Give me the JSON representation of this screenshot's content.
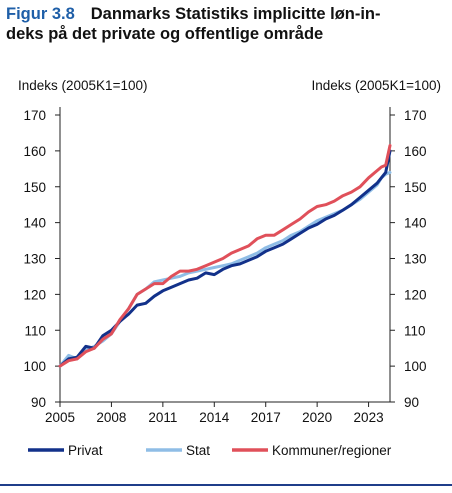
{
  "figure": {
    "number": "Figur 3.8",
    "title_line1": "Danmarks Statistiks implicitte løn-in-",
    "title_line2": "deks på det private og offentlige område"
  },
  "chart_data": {
    "type": "line",
    "title": "Danmarks Statistiks implicitte lønindeks på det private og offentlige område",
    "ylabel_left": "Indeks (2005K1=100)",
    "ylabel_right": "Indeks (2005K1=100)",
    "ylim": [
      90,
      170
    ],
    "yticks": [
      90,
      100,
      110,
      120,
      130,
      140,
      150,
      160,
      170
    ],
    "xlim": [
      2005,
      2024.25
    ],
    "xticks": [
      "2005",
      "2008",
      "2011",
      "2014",
      "2017",
      "2020",
      "2023"
    ],
    "grid": false,
    "legend_position": "bottom",
    "colors": {
      "Privat": "#12318a",
      "Stat": "#8fbde6",
      "Kommuner/regioner": "#e0505a"
    },
    "series": [
      {
        "name": "Privat",
        "x": [
          2005.0,
          2005.5,
          2006.0,
          2006.5,
          2007.0,
          2007.5,
          2008.0,
          2008.5,
          2009.0,
          2009.5,
          2010.0,
          2010.5,
          2011.0,
          2011.5,
          2012.0,
          2012.5,
          2013.0,
          2013.5,
          2014.0,
          2014.5,
          2015.0,
          2015.5,
          2016.0,
          2016.5,
          2017.0,
          2017.5,
          2018.0,
          2018.5,
          2019.0,
          2019.5,
          2020.0,
          2020.5,
          2021.0,
          2021.5,
          2022.0,
          2022.5,
          2023.0,
          2023.5,
          2023.75,
          2024.0,
          2024.25
        ],
        "values": [
          100.0,
          102.0,
          102.5,
          105.5,
          105.0,
          108.5,
          110.0,
          112.5,
          114.5,
          117.0,
          117.5,
          119.5,
          121.0,
          122.0,
          123.0,
          124.0,
          124.5,
          126.0,
          125.5,
          127.0,
          128.0,
          128.5,
          129.5,
          130.5,
          132.0,
          133.0,
          134.0,
          135.5,
          137.0,
          138.5,
          139.5,
          141.0,
          142.0,
          143.5,
          145.0,
          147.0,
          149.0,
          151.0,
          152.5,
          154.0,
          160.0
        ]
      },
      {
        "name": "Stat",
        "x": [
          2005.0,
          2005.5,
          2006.0,
          2006.5,
          2007.0,
          2007.5,
          2008.0,
          2008.5,
          2009.0,
          2009.5,
          2010.0,
          2010.5,
          2011.0,
          2011.5,
          2012.0,
          2012.5,
          2013.0,
          2013.5,
          2014.0,
          2014.5,
          2015.0,
          2015.5,
          2016.0,
          2016.5,
          2017.0,
          2017.5,
          2018.0,
          2018.5,
          2019.0,
          2019.5,
          2020.0,
          2020.5,
          2021.0,
          2021.5,
          2022.0,
          2022.5,
          2023.0,
          2023.5,
          2023.75,
          2024.0,
          2024.25
        ],
        "values": [
          100.0,
          103.0,
          102.0,
          104.5,
          105.5,
          107.0,
          109.0,
          112.5,
          116.0,
          120.0,
          121.5,
          123.5,
          124.0,
          124.5,
          125.0,
          126.0,
          126.5,
          127.0,
          127.5,
          128.0,
          128.5,
          129.5,
          130.5,
          131.5,
          133.0,
          134.0,
          135.0,
          136.5,
          137.5,
          139.0,
          140.5,
          141.5,
          142.5,
          143.5,
          145.0,
          146.5,
          148.5,
          150.5,
          152.5,
          153.5,
          154.0
        ]
      },
      {
        "name": "Kommuner/regioner",
        "x": [
          2005.0,
          2005.5,
          2006.0,
          2006.5,
          2007.0,
          2007.5,
          2008.0,
          2008.5,
          2009.0,
          2009.5,
          2010.0,
          2010.5,
          2011.0,
          2011.5,
          2012.0,
          2012.5,
          2013.0,
          2013.5,
          2014.0,
          2014.5,
          2015.0,
          2015.5,
          2016.0,
          2016.5,
          2017.0,
          2017.5,
          2018.0,
          2018.5,
          2019.0,
          2019.5,
          2020.0,
          2020.5,
          2021.0,
          2021.5,
          2022.0,
          2022.5,
          2023.0,
          2023.5,
          2023.75,
          2024.0,
          2024.25
        ],
        "values": [
          100.0,
          101.5,
          102.0,
          104.0,
          105.0,
          107.5,
          109.0,
          113.0,
          116.0,
          120.0,
          121.5,
          123.0,
          123.0,
          125.0,
          126.5,
          126.5,
          127.0,
          128.0,
          129.0,
          130.0,
          131.5,
          132.5,
          133.5,
          135.5,
          136.5,
          136.5,
          138.0,
          139.5,
          141.0,
          143.0,
          144.5,
          145.0,
          146.0,
          147.5,
          148.5,
          150.0,
          152.5,
          154.5,
          155.5,
          156.0,
          161.5
        ]
      }
    ]
  }
}
